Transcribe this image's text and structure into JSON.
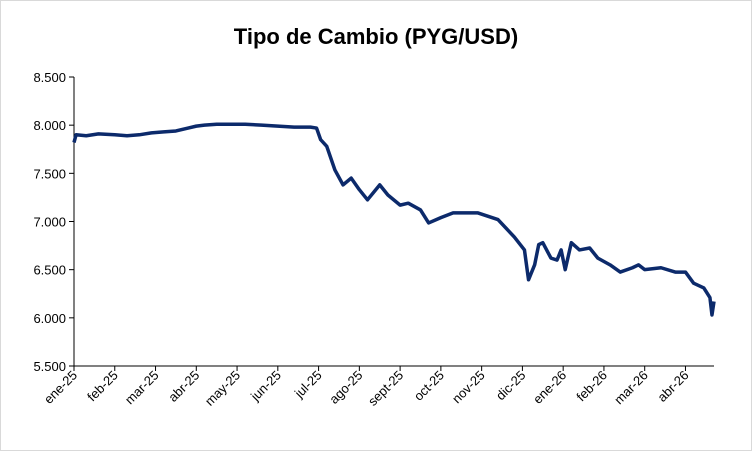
{
  "chart_data": {
    "type": "line",
    "title": "Tipo de Cambio (PYG/USD)",
    "x": [
      0,
      0.05,
      0.3,
      0.6,
      1.0,
      1.3,
      1.6,
      1.9,
      2.2,
      2.5,
      2.8,
      3.0,
      3.2,
      3.5,
      3.8,
      4.2,
      4.6,
      5.0,
      5.4,
      5.8,
      5.95,
      6.05,
      6.2,
      6.4,
      6.6,
      6.8,
      7.0,
      7.2,
      7.5,
      7.7,
      8.0,
      8.2,
      8.5,
      8.7,
      9.0,
      9.3,
      9.9,
      10.4,
      10.8,
      11.05,
      11.15,
      11.3,
      11.4,
      11.5,
      11.7,
      11.85,
      11.95,
      12.05,
      12.2,
      12.4,
      12.65,
      12.85,
      13.15,
      13.4,
      13.7,
      13.85,
      14.0,
      14.4,
      14.75,
      15.0,
      15.2,
      15.45,
      15.6,
      15.65,
      15.7
    ],
    "series": [
      {
        "name": "PYG/USD",
        "color": "#0c2a6b",
        "values": [
          7820,
          7900,
          7890,
          7910,
          7900,
          7890,
          7900,
          7920,
          7930,
          7940,
          7970,
          7990,
          8000,
          8010,
          8010,
          8010,
          8000,
          7990,
          7980,
          7980,
          7970,
          7850,
          7780,
          7535,
          7380,
          7450,
          7330,
          7225,
          7380,
          7275,
          7170,
          7190,
          7120,
          6985,
          7040,
          7090,
          7090,
          7020,
          6840,
          6705,
          6395,
          6550,
          6760,
          6780,
          6620,
          6600,
          6705,
          6500,
          6780,
          6705,
          6725,
          6620,
          6550,
          6475,
          6520,
          6550,
          6500,
          6520,
          6475,
          6475,
          6360,
          6310,
          6210,
          6030,
          6170
        ]
      }
    ],
    "xlim": [
      0,
      15.7
    ],
    "xticks": [
      {
        "value": 0,
        "label": "ene-25"
      },
      {
        "value": 1,
        "label": "feb-25"
      },
      {
        "value": 2,
        "label": "mar-25"
      },
      {
        "value": 3,
        "label": "abr-25"
      },
      {
        "value": 4,
        "label": "may-25"
      },
      {
        "value": 5,
        "label": "jun-25"
      },
      {
        "value": 6,
        "label": "jul-25"
      },
      {
        "value": 7,
        "label": "ago-25"
      },
      {
        "value": 8,
        "label": "sept-25"
      },
      {
        "value": 9,
        "label": "oct-25"
      },
      {
        "value": 10,
        "label": "nov-25"
      },
      {
        "value": 11,
        "label": "dic-25"
      },
      {
        "value": 12,
        "label": "ene-26"
      },
      {
        "value": 13,
        "label": "feb-26"
      },
      {
        "value": 14,
        "label": "mar-26"
      },
      {
        "value": 15,
        "label": "abr-26"
      }
    ],
    "ylim": [
      5500,
      8500
    ],
    "yticks": [
      {
        "value": 5500,
        "label": "5.500"
      },
      {
        "value": 6000,
        "label": "6.000"
      },
      {
        "value": 6500,
        "label": "6.500"
      },
      {
        "value": 7000,
        "label": "7.000"
      },
      {
        "value": 7500,
        "label": "7.500"
      },
      {
        "value": 8000,
        "label": "8.000"
      },
      {
        "value": 8500,
        "label": "8.500"
      }
    ]
  }
}
